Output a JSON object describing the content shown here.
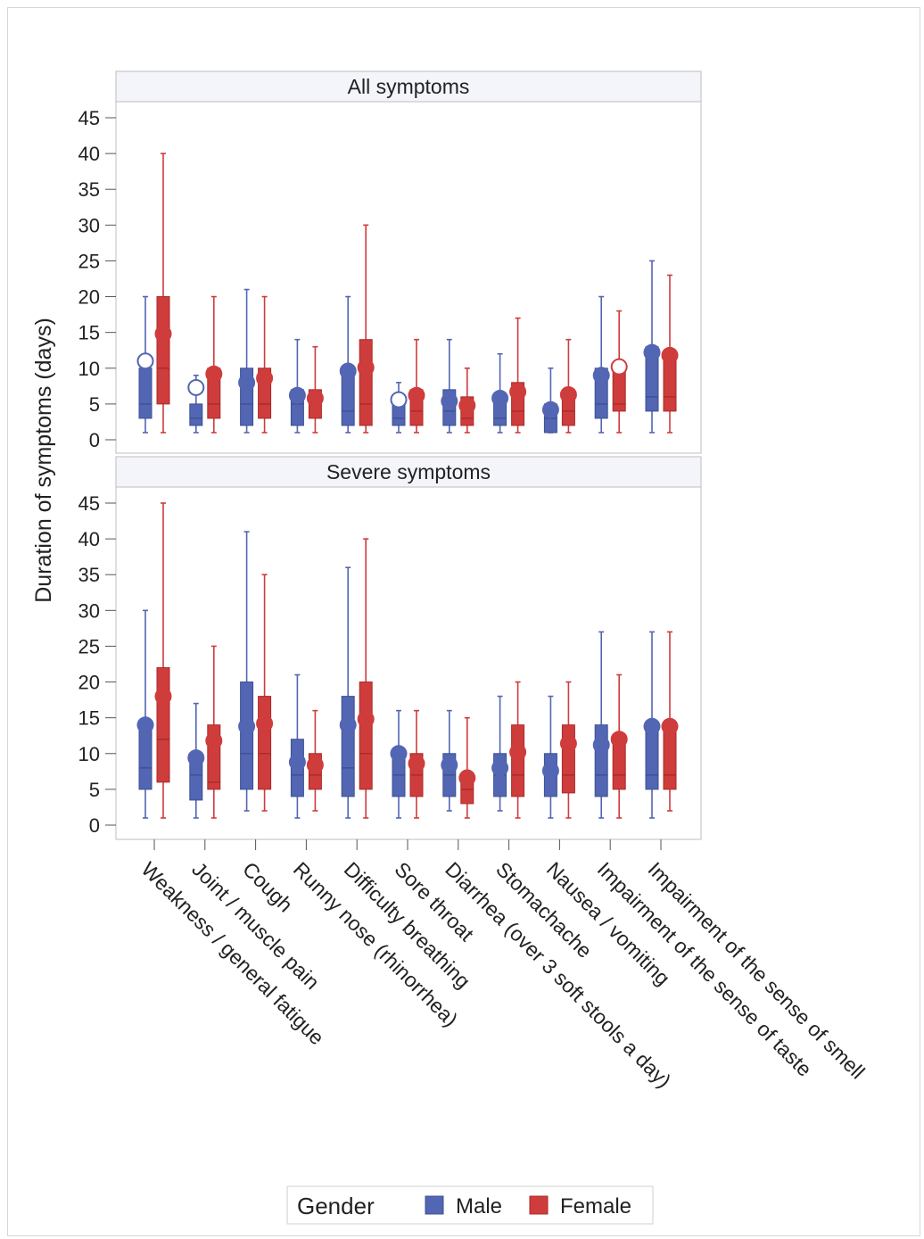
{
  "chart_data": {
    "type": "box",
    "ylabel": "Duration of symptoms (days)",
    "xlabel": "",
    "ylim": [
      0,
      45
    ],
    "yticks": [
      0,
      5,
      10,
      15,
      20,
      25,
      30,
      35,
      40,
      45
    ],
    "categories": [
      "Weakness / general fatigue",
      "Joint / muscle pain",
      "Cough",
      "Runny nose (rhinorrhea)",
      "Difficulty breathing",
      "Sore throat",
      "Diarrhea (over 3 soft stools a day)",
      "Stomachache",
      "Nausea / vomiting",
      "Impairment of the sense of taste",
      "Impairment of the sense of smell"
    ],
    "legend": {
      "title": "Gender",
      "position": "bottom",
      "entries": [
        "Male",
        "Female"
      ]
    },
    "colors": {
      "Male": "#5266b3",
      "Female": "#cf3c3c"
    },
    "panels": [
      {
        "title": "All symptoms",
        "series": [
          {
            "name": "Male",
            "boxes": [
              {
                "min": 1,
                "q1": 3,
                "median": 5,
                "q3": 10,
                "max": 20,
                "mean": 11
              },
              {
                "min": 1,
                "q1": 2,
                "median": 3,
                "q3": 5,
                "max": 9,
                "mean": 7.3
              },
              {
                "min": 1,
                "q1": 2,
                "median": 5,
                "q3": 10,
                "max": 21,
                "mean": 8
              },
              {
                "min": 1,
                "q1": 2,
                "median": 5,
                "q3": 7,
                "max": 14,
                "mean": 6.2
              },
              {
                "min": 1,
                "q1": 2,
                "median": 4,
                "q3": 10,
                "max": 20,
                "mean": 9.6
              },
              {
                "min": 1,
                "q1": 2,
                "median": 3,
                "q3": 5,
                "max": 8,
                "mean": 5.6
              },
              {
                "min": 1,
                "q1": 2,
                "median": 4,
                "q3": 7,
                "max": 14,
                "mean": 5.4
              },
              {
                "min": 1,
                "q1": 2,
                "median": 3,
                "q3": 6,
                "max": 12,
                "mean": 5.8
              },
              {
                "min": 1,
                "q1": 1,
                "median": 3,
                "q3": 5,
                "max": 10,
                "mean": 4.2
              },
              {
                "min": 1,
                "q1": 3,
                "median": 5,
                "q3": 10,
                "max": 20,
                "mean": 9
              },
              {
                "min": 1,
                "q1": 4,
                "median": 6,
                "q3": 13,
                "max": 25,
                "mean": 12.2
              }
            ]
          },
          {
            "name": "Female",
            "boxes": [
              {
                "min": 1,
                "q1": 5,
                "median": 10,
                "q3": 20,
                "max": 40,
                "mean": 14.8
              },
              {
                "min": 1,
                "q1": 3,
                "median": 5,
                "q3": 10,
                "max": 20,
                "mean": 9.2
              },
              {
                "min": 1,
                "q1": 3,
                "median": 5,
                "q3": 10,
                "max": 20,
                "mean": 8.6
              },
              {
                "min": 1,
                "q1": 3,
                "median": 5,
                "q3": 7,
                "max": 13,
                "mean": 5.8
              },
              {
                "min": 1,
                "q1": 2,
                "median": 5,
                "q3": 14,
                "max": 30,
                "mean": 10.1
              },
              {
                "min": 1,
                "q1": 2,
                "median": 4,
                "q3": 7,
                "max": 14,
                "mean": 6.2
              },
              {
                "min": 1,
                "q1": 2,
                "median": 3,
                "q3": 6,
                "max": 10,
                "mean": 4.8
              },
              {
                "min": 1,
                "q1": 2,
                "median": 4,
                "q3": 8,
                "max": 17,
                "mean": 6.7
              },
              {
                "min": 1,
                "q1": 2,
                "median": 4,
                "q3": 7,
                "max": 14,
                "mean": 6.3
              },
              {
                "min": 1,
                "q1": 4,
                "median": 5,
                "q3": 10,
                "max": 18,
                "mean": 10.2
              },
              {
                "min": 1,
                "q1": 4,
                "median": 6,
                "q3": 12,
                "max": 23,
                "mean": 11.8
              }
            ]
          }
        ]
      },
      {
        "title": "Severe symptoms",
        "series": [
          {
            "name": "Male",
            "boxes": [
              {
                "min": 1,
                "q1": 5,
                "median": 8,
                "q3": 14,
                "max": 30,
                "mean": 14
              },
              {
                "min": 1,
                "q1": 3.5,
                "median": 7,
                "q3": 10,
                "max": 17,
                "mean": 9.4
              },
              {
                "min": 2,
                "q1": 5,
                "median": 10,
                "q3": 20,
                "max": 41,
                "mean": 13.8
              },
              {
                "min": 1,
                "q1": 4,
                "median": 7,
                "q3": 12,
                "max": 21,
                "mean": 8.8
              },
              {
                "min": 1,
                "q1": 4,
                "median": 8,
                "q3": 18,
                "max": 36,
                "mean": 14
              },
              {
                "min": 1,
                "q1": 4,
                "median": 7,
                "q3": 10,
                "max": 16,
                "mean": 10
              },
              {
                "min": 2,
                "q1": 4,
                "median": 7,
                "q3": 10,
                "max": 16,
                "mean": 8.4
              },
              {
                "min": 2,
                "q1": 4,
                "median": 7,
                "q3": 10,
                "max": 18,
                "mean": 8
              },
              {
                "min": 1,
                "q1": 4,
                "median": 7,
                "q3": 10,
                "max": 18,
                "mean": 7.6
              },
              {
                "min": 1,
                "q1": 4,
                "median": 7,
                "q3": 14,
                "max": 27,
                "mean": 11.2
              },
              {
                "min": 1,
                "q1": 5,
                "median": 7,
                "q3": 14,
                "max": 27,
                "mean": 13.8
              }
            ]
          },
          {
            "name": "Female",
            "boxes": [
              {
                "min": 1,
                "q1": 6,
                "median": 12,
                "q3": 22,
                "max": 45,
                "mean": 18
              },
              {
                "min": 1,
                "q1": 5,
                "median": 6,
                "q3": 14,
                "max": 25,
                "mean": 11.8
              },
              {
                "min": 2,
                "q1": 5,
                "median": 10,
                "q3": 18,
                "max": 35,
                "mean": 14.2
              },
              {
                "min": 2,
                "q1": 5,
                "median": 7,
                "q3": 10,
                "max": 16,
                "mean": 8.4
              },
              {
                "min": 1,
                "q1": 5,
                "median": 10,
                "q3": 20,
                "max": 40,
                "mean": 14.8
              },
              {
                "min": 1,
                "q1": 4,
                "median": 7,
                "q3": 10,
                "max": 16,
                "mean": 8.6
              },
              {
                "min": 1,
                "q1": 3,
                "median": 5,
                "q3": 7,
                "max": 15,
                "mean": 6.6
              },
              {
                "min": 1,
                "q1": 4,
                "median": 7,
                "q3": 14,
                "max": 20,
                "mean": 10.2
              },
              {
                "min": 1,
                "q1": 4.5,
                "median": 7,
                "q3": 14,
                "max": 20,
                "mean": 11.4
              },
              {
                "min": 1,
                "q1": 5,
                "median": 7,
                "q3": 12,
                "max": 21,
                "mean": 12
              },
              {
                "min": 2,
                "q1": 5,
                "median": 7,
                "q3": 14,
                "max": 27,
                "mean": 13.8
              }
            ]
          }
        ]
      }
    ]
  }
}
